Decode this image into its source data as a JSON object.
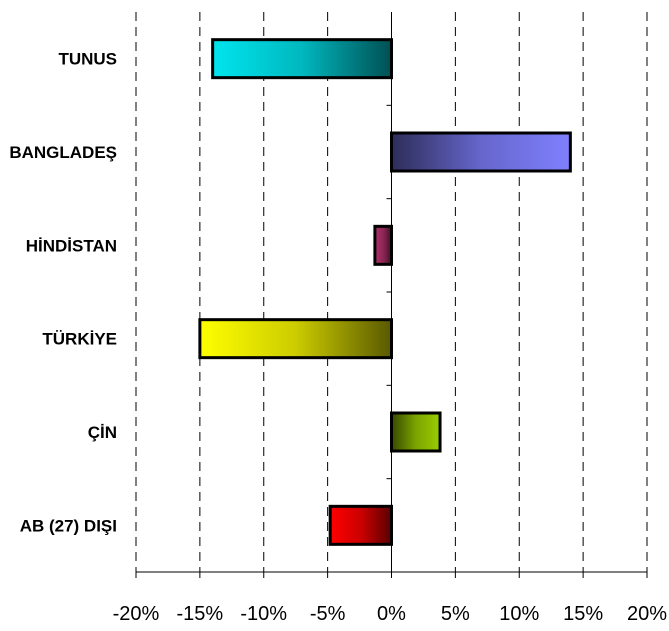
{
  "chart_data": {
    "type": "bar",
    "orientation": "horizontal",
    "categories": [
      "TUNUS",
      "BANGLADEŞ",
      "HİNDİSTAN",
      "TÜRKİYE",
      "ÇİN",
      "AB (27) DIŞI"
    ],
    "values": [
      -14,
      14,
      -1.3,
      -15,
      3.8,
      -4.8
    ],
    "colors": [
      "#00E5EE",
      "#8080FF",
      "#B0306A",
      "#FFFF00",
      "#9ACD00",
      "#FF0000"
    ],
    "x_ticks": [
      "-20%",
      "-15%",
      "-10%",
      "-5%",
      "0%",
      "5%",
      "10%",
      "15%",
      "20%"
    ],
    "xlim": [
      -20,
      20
    ],
    "title": "",
    "xlabel": "",
    "ylabel": "",
    "grid": "vertical-dashed",
    "legend": "none"
  }
}
